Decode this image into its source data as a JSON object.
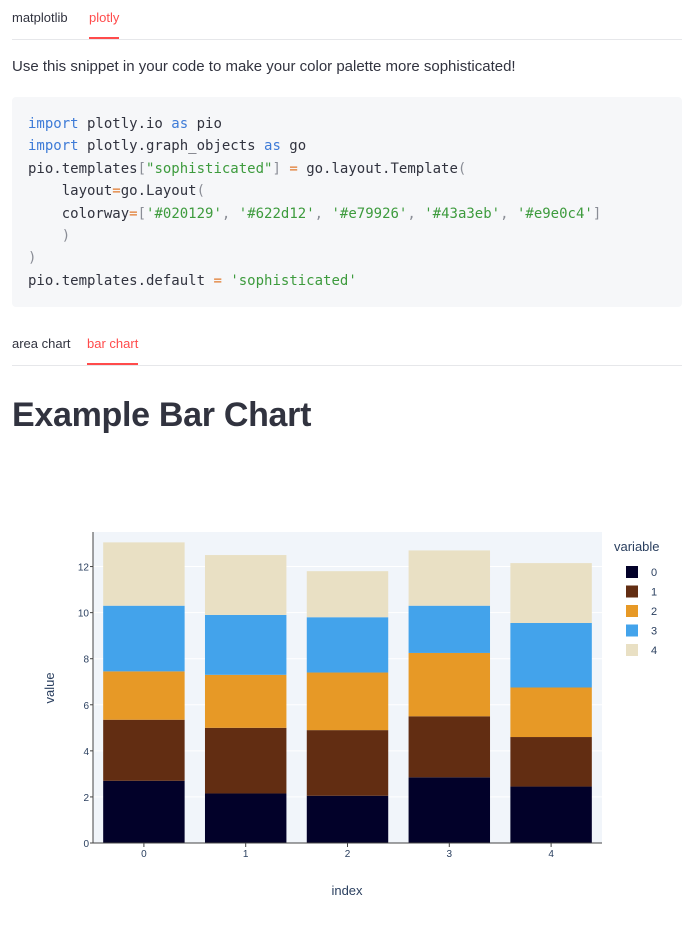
{
  "top_tabs": [
    {
      "label": "matplotlib",
      "active": false
    },
    {
      "label": "plotly",
      "active": true
    }
  ],
  "intro_text": "Use this snippet in your code to make your color palette more sophisticated!",
  "code_lines": [
    [
      [
        "kw",
        "import"
      ],
      [
        "t",
        " plotly.io "
      ],
      [
        "kw",
        "as"
      ],
      [
        "t",
        " pio"
      ]
    ],
    [
      [
        "kw",
        "import"
      ],
      [
        "t",
        " plotly.graph_objects "
      ],
      [
        "kw",
        "as"
      ],
      [
        "t",
        " go"
      ]
    ],
    [
      [
        "t",
        "pio.templates"
      ],
      [
        "pn",
        "["
      ],
      [
        "str",
        "\"sophisticated\""
      ],
      [
        "pn",
        "]"
      ],
      [
        "t",
        " "
      ],
      [
        "op",
        "="
      ],
      [
        "t",
        " go.layout.Template"
      ],
      [
        "pn",
        "("
      ]
    ],
    [
      [
        "t",
        "    layout"
      ],
      [
        "op",
        "="
      ],
      [
        "t",
        "go.Layout"
      ],
      [
        "pn",
        "("
      ]
    ],
    [
      [
        "t",
        "    colorway"
      ],
      [
        "op",
        "="
      ],
      [
        "pn",
        "["
      ],
      [
        "str",
        "'#020129'"
      ],
      [
        "pn",
        ","
      ],
      [
        "t",
        " "
      ],
      [
        "str",
        "'#622d12'"
      ],
      [
        "pn",
        ","
      ],
      [
        "t",
        " "
      ],
      [
        "str",
        "'#e79926'"
      ],
      [
        "pn",
        ","
      ],
      [
        "t",
        " "
      ],
      [
        "str",
        "'#43a3eb'"
      ],
      [
        "pn",
        ","
      ],
      [
        "t",
        " "
      ],
      [
        "str",
        "'#e9e0c4'"
      ],
      [
        "pn",
        "]"
      ]
    ],
    [
      [
        "pn",
        "    )"
      ]
    ],
    [
      [
        "pn",
        ")"
      ]
    ],
    [
      [
        "t",
        "pio.templates.default "
      ],
      [
        "op",
        "="
      ],
      [
        "t",
        " "
      ],
      [
        "str",
        "'sophisticated'"
      ]
    ]
  ],
  "chart_tabs": [
    {
      "label": "area chart",
      "active": false
    },
    {
      "label": "bar chart",
      "active": true
    }
  ],
  "page_title": "Example Bar Chart",
  "chart_data": {
    "type": "bar",
    "stacked": true,
    "xlabel": "index",
    "ylabel": "value",
    "categories": [
      "0",
      "1",
      "2",
      "3",
      "4"
    ],
    "ylim": [
      0,
      13.5
    ],
    "yticks": [
      0,
      2,
      4,
      6,
      8,
      10,
      12
    ],
    "legend_title": "variable",
    "legend_position": "top-right",
    "series": [
      {
        "name": "0",
        "color": "#020129",
        "values": [
          2.7,
          2.15,
          2.05,
          2.85,
          2.45
        ]
      },
      {
        "name": "1",
        "color": "#622d12",
        "values": [
          2.65,
          2.85,
          2.85,
          2.65,
          2.15
        ]
      },
      {
        "name": "2",
        "color": "#e79926",
        "values": [
          2.1,
          2.3,
          2.5,
          2.75,
          2.15
        ]
      },
      {
        "name": "3",
        "color": "#43a3eb",
        "values": [
          2.85,
          2.6,
          2.4,
          2.05,
          2.8
        ]
      },
      {
        "name": "4",
        "color": "#e9e0c4",
        "values": [
          2.75,
          2.6,
          2.0,
          2.4,
          2.6
        ]
      }
    ]
  }
}
